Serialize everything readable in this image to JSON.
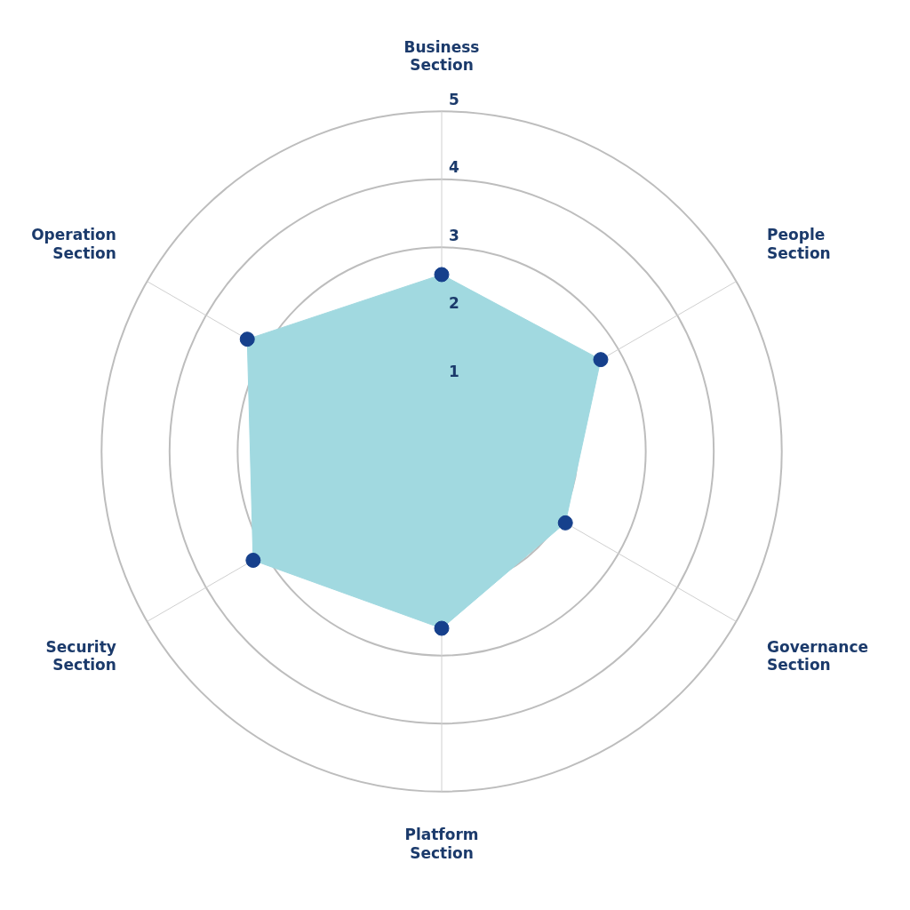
{
  "chart_data": {
    "type": "radar",
    "categories": [
      "Business Section",
      "People Section",
      "Governance Section",
      "Platform Section",
      "Security Section",
      "Operation Section"
    ],
    "series": [
      {
        "color": "#a1d9e0",
        "values": [
          2.6,
          2.7,
          2.1,
          2.6,
          3.2,
          3.3
        ]
      }
    ],
    "ylim": [
      0,
      5
    ],
    "yticks": [
      1,
      2,
      3,
      4,
      5
    ],
    "grid": true,
    "marker": "circle",
    "legend": false
  }
}
